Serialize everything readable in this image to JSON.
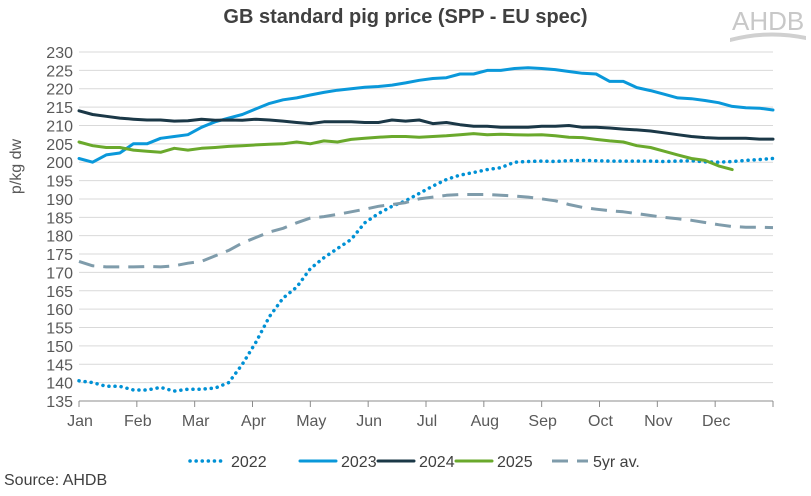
{
  "chart_data": {
    "type": "line",
    "title": "GB standard pig price (SPP - EU spec)",
    "ylabel": "p/kg dw",
    "xlabel": "",
    "ylim": [
      135,
      230
    ],
    "ytick_step": 5,
    "x_unit": "week of year",
    "xlim": [
      1,
      52
    ],
    "month_ticks": [
      "Jan",
      "Feb",
      "Mar",
      "Apr",
      "May",
      "Jun",
      "Jul",
      "Aug",
      "Sep",
      "Oct",
      "Nov",
      "Dec"
    ],
    "grid": "horizontal",
    "legend_position": "bottom",
    "series": [
      {
        "name": "2022",
        "style": "dotted",
        "color": "#0091d5",
        "values": [
          140.5,
          140,
          139,
          139,
          138,
          138,
          138.7,
          137.7,
          138.2,
          138.2,
          138.5,
          140,
          145,
          151,
          158,
          163,
          166,
          171,
          174,
          176.5,
          179,
          183.5,
          186,
          188,
          189.5,
          191.5,
          193.5,
          195.3,
          196.5,
          197.2,
          198,
          198.5,
          200,
          200.2,
          200.3,
          200.2,
          200.4,
          200.5,
          200.4,
          200.3,
          200.3,
          200.3,
          200.3,
          200.2,
          200.3,
          200.4,
          200.1,
          200,
          200.2,
          200.5,
          200.7,
          201
        ]
      },
      {
        "name": "2023",
        "style": "solid",
        "color": "#0a98da",
        "values": [
          201,
          200,
          202,
          202.5,
          205,
          205,
          206.5,
          207,
          207.5,
          209.5,
          211,
          212,
          213,
          214.5,
          216,
          217,
          217.5,
          218.3,
          219,
          219.6,
          220,
          220.4,
          220.6,
          221,
          221.6,
          222.3,
          222.8,
          223,
          224,
          224,
          225,
          225,
          225.5,
          225.7,
          225.5,
          225.2,
          224.7,
          224.2,
          224,
          222,
          222,
          220.3,
          219.5,
          218.5,
          217.5,
          217.3,
          216.8,
          216.2,
          215.2,
          214.8,
          214.7,
          214.2
        ]
      },
      {
        "name": "2024",
        "style": "solid",
        "color": "#1b3847",
        "values": [
          214,
          213,
          212.5,
          212,
          211.7,
          211.5,
          211.5,
          211.2,
          211.3,
          211.7,
          211.4,
          211.5,
          211.4,
          211.7,
          211.5,
          211.2,
          210.8,
          210.5,
          211,
          211,
          211,
          210.8,
          210.8,
          211.5,
          211.2,
          211.5,
          210.5,
          210.8,
          210.2,
          209.8,
          209.8,
          209.5,
          209.5,
          209.5,
          209.8,
          209.8,
          210,
          209.5,
          209.5,
          209.3,
          209,
          208.8,
          208.5,
          208,
          207.5,
          207,
          206.7,
          206.5,
          206.5,
          206.5,
          206.3,
          206.3
        ]
      },
      {
        "name": "2025",
        "style": "solid",
        "color": "#6aa92c",
        "values": [
          205.5,
          204.5,
          204,
          204,
          203.3,
          203,
          202.7,
          203.8,
          203.3,
          203.8,
          204,
          204.3,
          204.5,
          204.7,
          204.9,
          205,
          205.5,
          205,
          205.8,
          205.5,
          206.2,
          206.5,
          206.8,
          207,
          207,
          206.8,
          207,
          207.2,
          207.5,
          207.8,
          207.5,
          207.6,
          207.5,
          207.4,
          207.5,
          207.2,
          206.8,
          206.7,
          206.2,
          205.8,
          205.5,
          204.5,
          204,
          203,
          202,
          201,
          200.5,
          199,
          198
        ]
      },
      {
        "name": "5yr av.",
        "style": "dashed",
        "color": "#7f9cab",
        "values": [
          173,
          171.8,
          171.5,
          171.5,
          171.5,
          171.6,
          171.5,
          171.8,
          172.5,
          173,
          174.5,
          176,
          178,
          179.5,
          181,
          182,
          183.5,
          184.8,
          185.2,
          185.8,
          186.5,
          187.2,
          188,
          188.5,
          189,
          190,
          190.5,
          191,
          191.2,
          191.2,
          191.2,
          191,
          190.8,
          190.5,
          190,
          189.5,
          188.5,
          187.7,
          187.2,
          186.8,
          186.5,
          186,
          185.5,
          185,
          184.6,
          184.2,
          183.6,
          183,
          182.5,
          182.3,
          182.3,
          182.2
        ]
      }
    ]
  },
  "logo": {
    "text": "AHDB"
  },
  "source": "Source: AHDB"
}
